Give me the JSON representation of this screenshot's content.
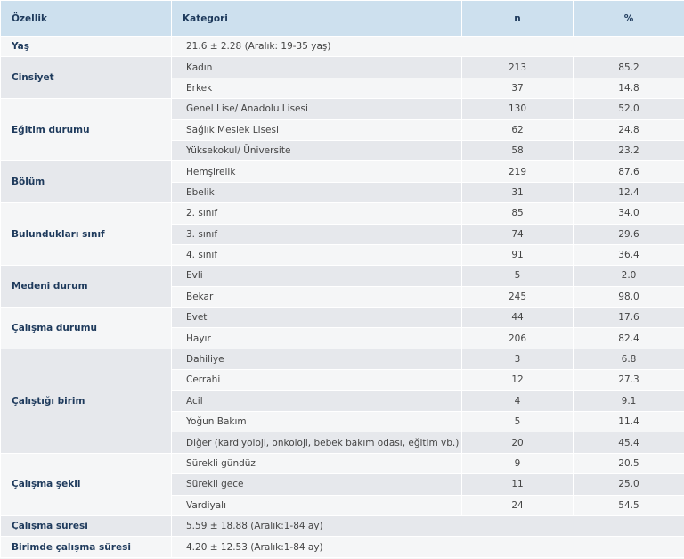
{
  "table": {
    "header": [
      "Özellik",
      "Kategori",
      "n",
      "%"
    ],
    "groups": [
      {
        "label": "Yaş",
        "summary": "21.6 ± 2.28 (Aralık: 19-35 yaş)"
      },
      {
        "label": "Cinsiyet",
        "rows": [
          [
            "Kadın",
            "213",
            "85.2"
          ],
          [
            "Erkek",
            "37",
            "14.8"
          ]
        ]
      },
      {
        "label": "Eğitim durumu",
        "rows": [
          [
            "Genel Lise/ Anadolu Lisesi",
            "130",
            "52.0"
          ],
          [
            "Sağlık Meslek Lisesi",
            "62",
            "24.8"
          ],
          [
            "Yüksekokul/ Üniversite",
            "58",
            "23.2"
          ]
        ]
      },
      {
        "label": "Bölüm",
        "rows": [
          [
            "Hemşirelik",
            "219",
            "87.6"
          ],
          [
            "Ebelik",
            "31",
            "12.4"
          ]
        ]
      },
      {
        "label": "Bulundukları sınıf",
        "rows": [
          [
            "2. sınıf",
            "85",
            "34.0"
          ],
          [
            "3. sınıf",
            "74",
            "29.6"
          ],
          [
            "4. sınıf",
            "91",
            "36.4"
          ]
        ]
      },
      {
        "label": "Medeni durum",
        "rows": [
          [
            "Evli",
            "5",
            "2.0"
          ],
          [
            "Bekar",
            "245",
            "98.0"
          ]
        ]
      },
      {
        "label": "Çalışma durumu",
        "rows": [
          [
            "Evet",
            "44",
            "17.6"
          ],
          [
            "Hayır",
            "206",
            "82.4"
          ]
        ]
      },
      {
        "label": "Çalıştığı birim",
        "rows": [
          [
            "Dahiliye",
            "3",
            "6.8"
          ],
          [
            "Cerrahi",
            "12",
            "27.3"
          ],
          [
            "Acil",
            "4",
            "9.1"
          ],
          [
            "Yoğun Bakım",
            "5",
            "11.4"
          ],
          [
            "Diğer (kardiyoloji, onkoloji, bebek bakım odası, eğitim vb.)",
            "20",
            "45.4"
          ]
        ]
      },
      {
        "label": "Çalışma şekli",
        "rows": [
          [
            "Sürekli gündüz",
            "9",
            "20.5"
          ],
          [
            "Sürekli gece",
            "11",
            "25.0"
          ],
          [
            "Vardiyalı",
            "24",
            "54.5"
          ]
        ]
      },
      {
        "label": "Çalışma süresi",
        "summary": "5.59 ± 18.88 (Aralık:1-84 ay)"
      },
      {
        "label": "Birimde çalışma süresi",
        "summary": "4.20 ± 12.53 (Aralık:1-84 ay)"
      }
    ]
  }
}
